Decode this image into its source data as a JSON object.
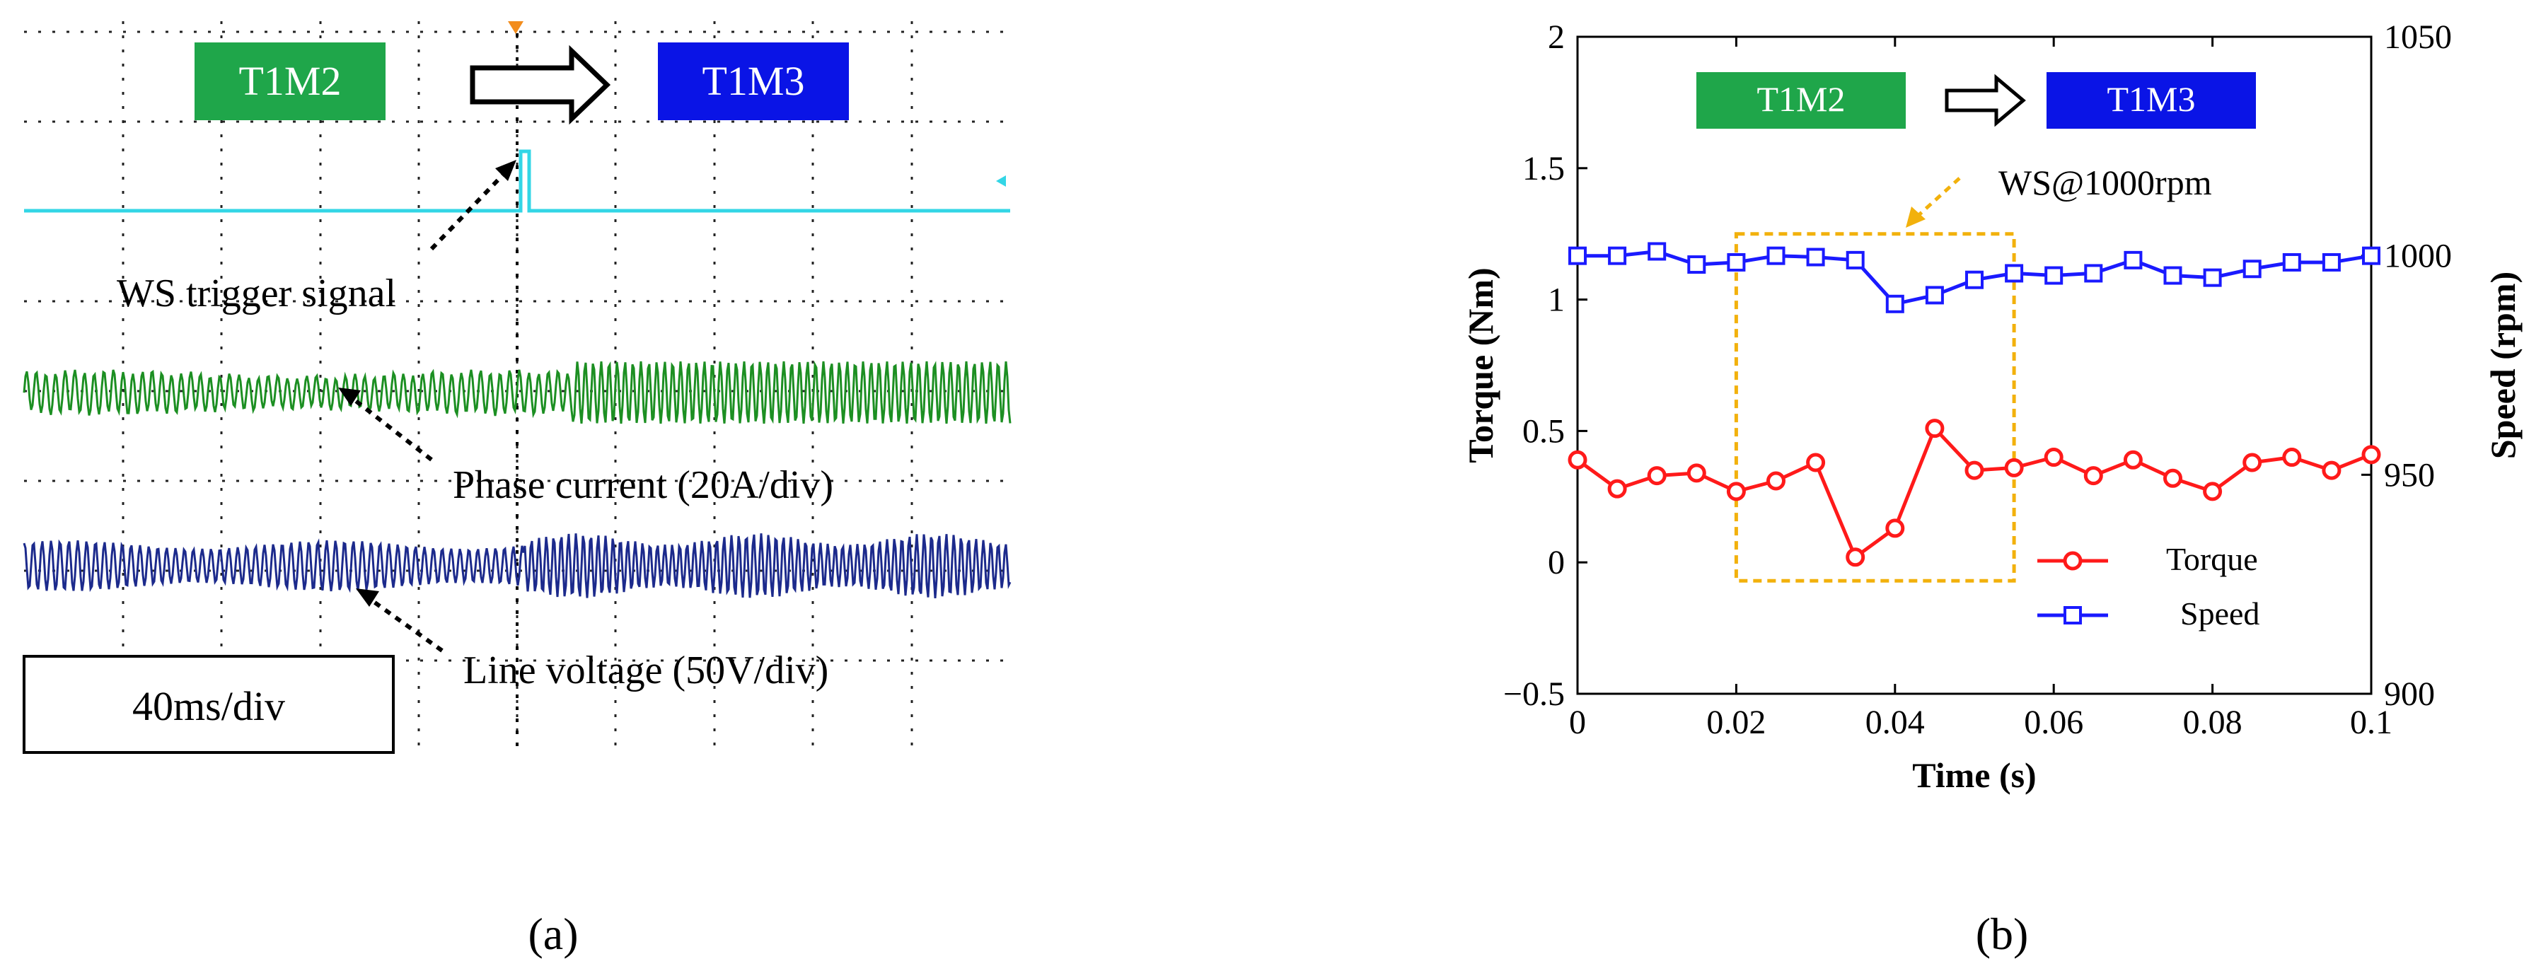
{
  "panel_a": {
    "caption": "(a)",
    "mode_from": "T1M2",
    "mode_to": "T1M3",
    "mode_from_color": "#1fa64a",
    "mode_to_color": "#0a14e6",
    "labels": {
      "trigger": "WS trigger signal",
      "current": "Phase current (20A/div)",
      "voltage": "Line voltage (50V/div)",
      "timebase": "40ms/div"
    },
    "trace_colors": {
      "trigger": "#33d6e6",
      "current": "#1c8f22",
      "voltage": "#1c2a8c"
    }
  },
  "panel_b": {
    "caption": "(b)",
    "mode_from": "T1M2",
    "mode_to": "T1M3",
    "annotation": "WS@1000rpm",
    "annotation_color": "#f2b10c"
  },
  "chart_data": [
    {
      "type": "line",
      "title": "",
      "xlabel": "Time (s)",
      "ylabel": "Torque (Nm)",
      "y2label": "Speed (rpm)",
      "xlim": [
        0,
        0.1
      ],
      "ylim": [
        -0.5,
        2
      ],
      "y2lim": [
        900,
        1050
      ],
      "xticks": [
        "0",
        "0.02",
        "0.04",
        "0.06",
        "0.08",
        "0.1"
      ],
      "yticks": [
        "−0.5",
        "0",
        "0.5",
        "1",
        "1.5",
        "2"
      ],
      "y2ticks": [
        "900",
        "950",
        "1000",
        "1050"
      ],
      "legend": "bottom-right",
      "x": [
        0,
        0.005,
        0.01,
        0.015,
        0.02,
        0.025,
        0.03,
        0.035,
        0.04,
        0.045,
        0.05,
        0.055,
        0.06,
        0.065,
        0.07,
        0.075,
        0.08,
        0.085,
        0.09,
        0.095,
        0.1
      ],
      "series": [
        {
          "name": "Torque",
          "axis": "left",
          "color": "#ff1a1a",
          "marker": "circle",
          "values": [
            0.39,
            0.28,
            0.33,
            0.34,
            0.27,
            0.31,
            0.38,
            0.02,
            0.13,
            0.51,
            0.35,
            0.36,
            0.4,
            0.33,
            0.39,
            0.32,
            0.27,
            0.38,
            0.4,
            0.35,
            0.41
          ]
        },
        {
          "name": "Speed",
          "axis": "right",
          "color": "#1a1aff",
          "marker": "square",
          "values": [
            1000,
            1000,
            1001,
            998,
            998.5,
            1000,
            999.7,
            999,
            989,
            991,
            994.5,
            996,
            995.5,
            996,
            999,
            995.5,
            995,
            997,
            998.5,
            998.5,
            1000
          ]
        }
      ],
      "highlight_box": {
        "x": [
          0.02,
          0.055
        ],
        "y": [
          -0.07,
          1.25
        ]
      }
    }
  ]
}
